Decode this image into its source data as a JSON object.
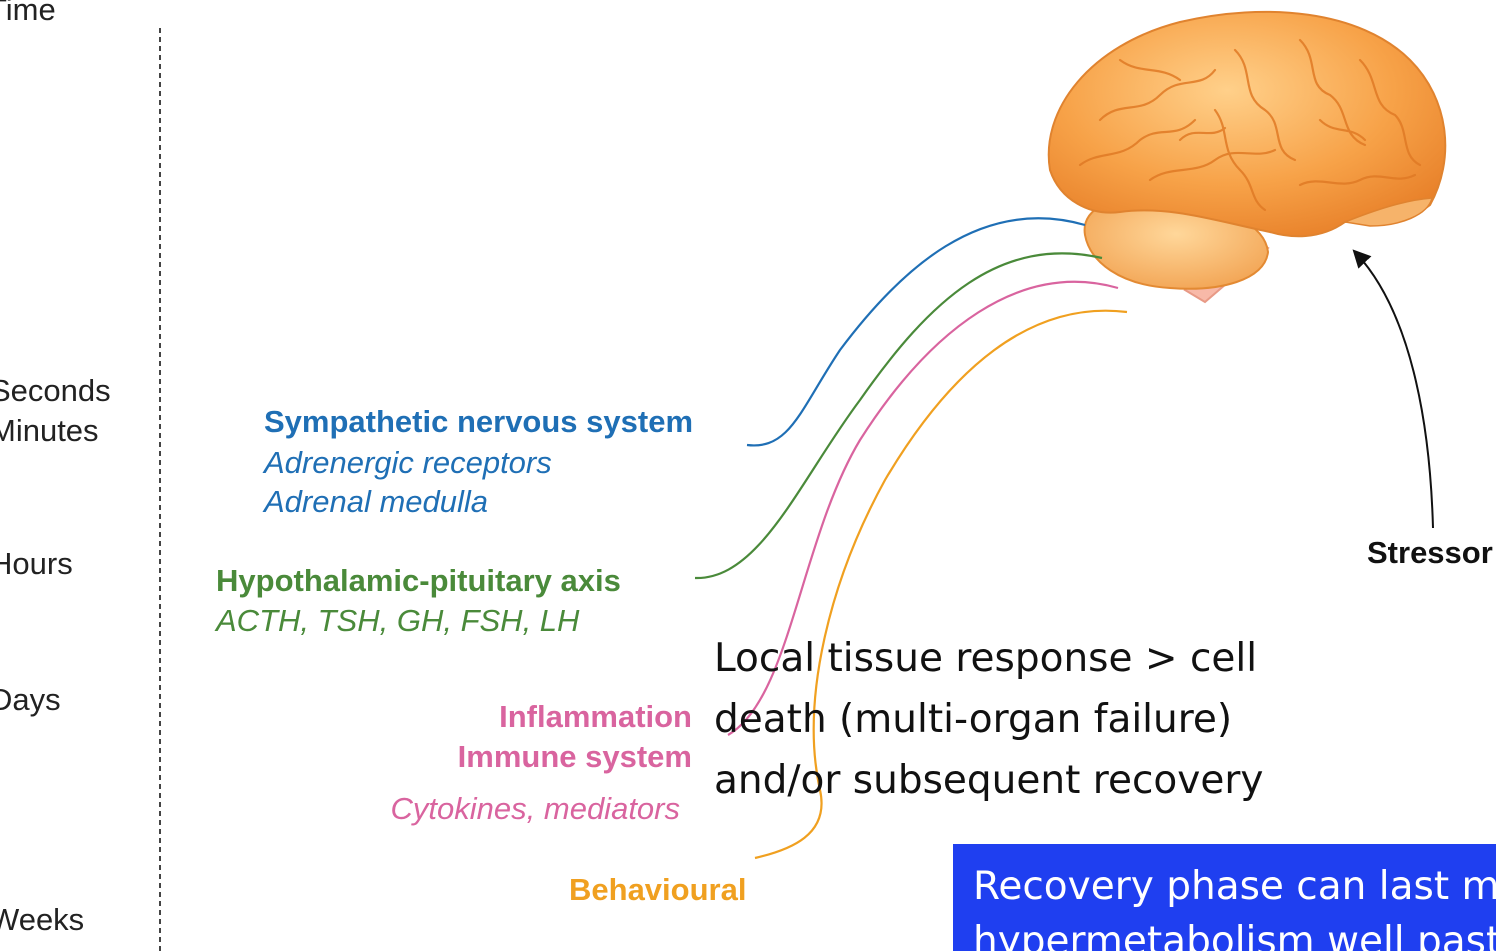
{
  "timeline": {
    "header": "Time",
    "ticks": [
      "Seconds",
      "Minutes",
      "Hours",
      "Days",
      "Weeks"
    ]
  },
  "pathways": {
    "sympathetic": {
      "title": "Sympathetic nervous system",
      "sub1": "Adrenergic receptors",
      "sub2": "Adrenal medulla"
    },
    "hpa": {
      "title": "Hypothalamic-pituitary axis",
      "sub": "ACTH, TSH, GH, FSH, LH"
    },
    "inflammation": {
      "title1": "Inflammation",
      "title2": "Immune system",
      "sub": "Cytokines, mediators"
    },
    "behavioural": {
      "title": "Behavioural"
    }
  },
  "stressor": {
    "label": "Stressor"
  },
  "note": {
    "line1": "Local tissue response > cell",
    "line2": "death (multi-organ failure)",
    "line3": "and/or subsequent recovery"
  },
  "callout": {
    "line1": "Recovery phase can last months",
    "line2": "hypermetabolism well past"
  },
  "colors": {
    "sympathetic": "#1f6fb5",
    "hpa": "#4a8a3a",
    "inflammation": "#d9649f",
    "behavioural": "#f0a020",
    "brain": "#f5a04a",
    "callout_bg": "#1f3ff0"
  }
}
